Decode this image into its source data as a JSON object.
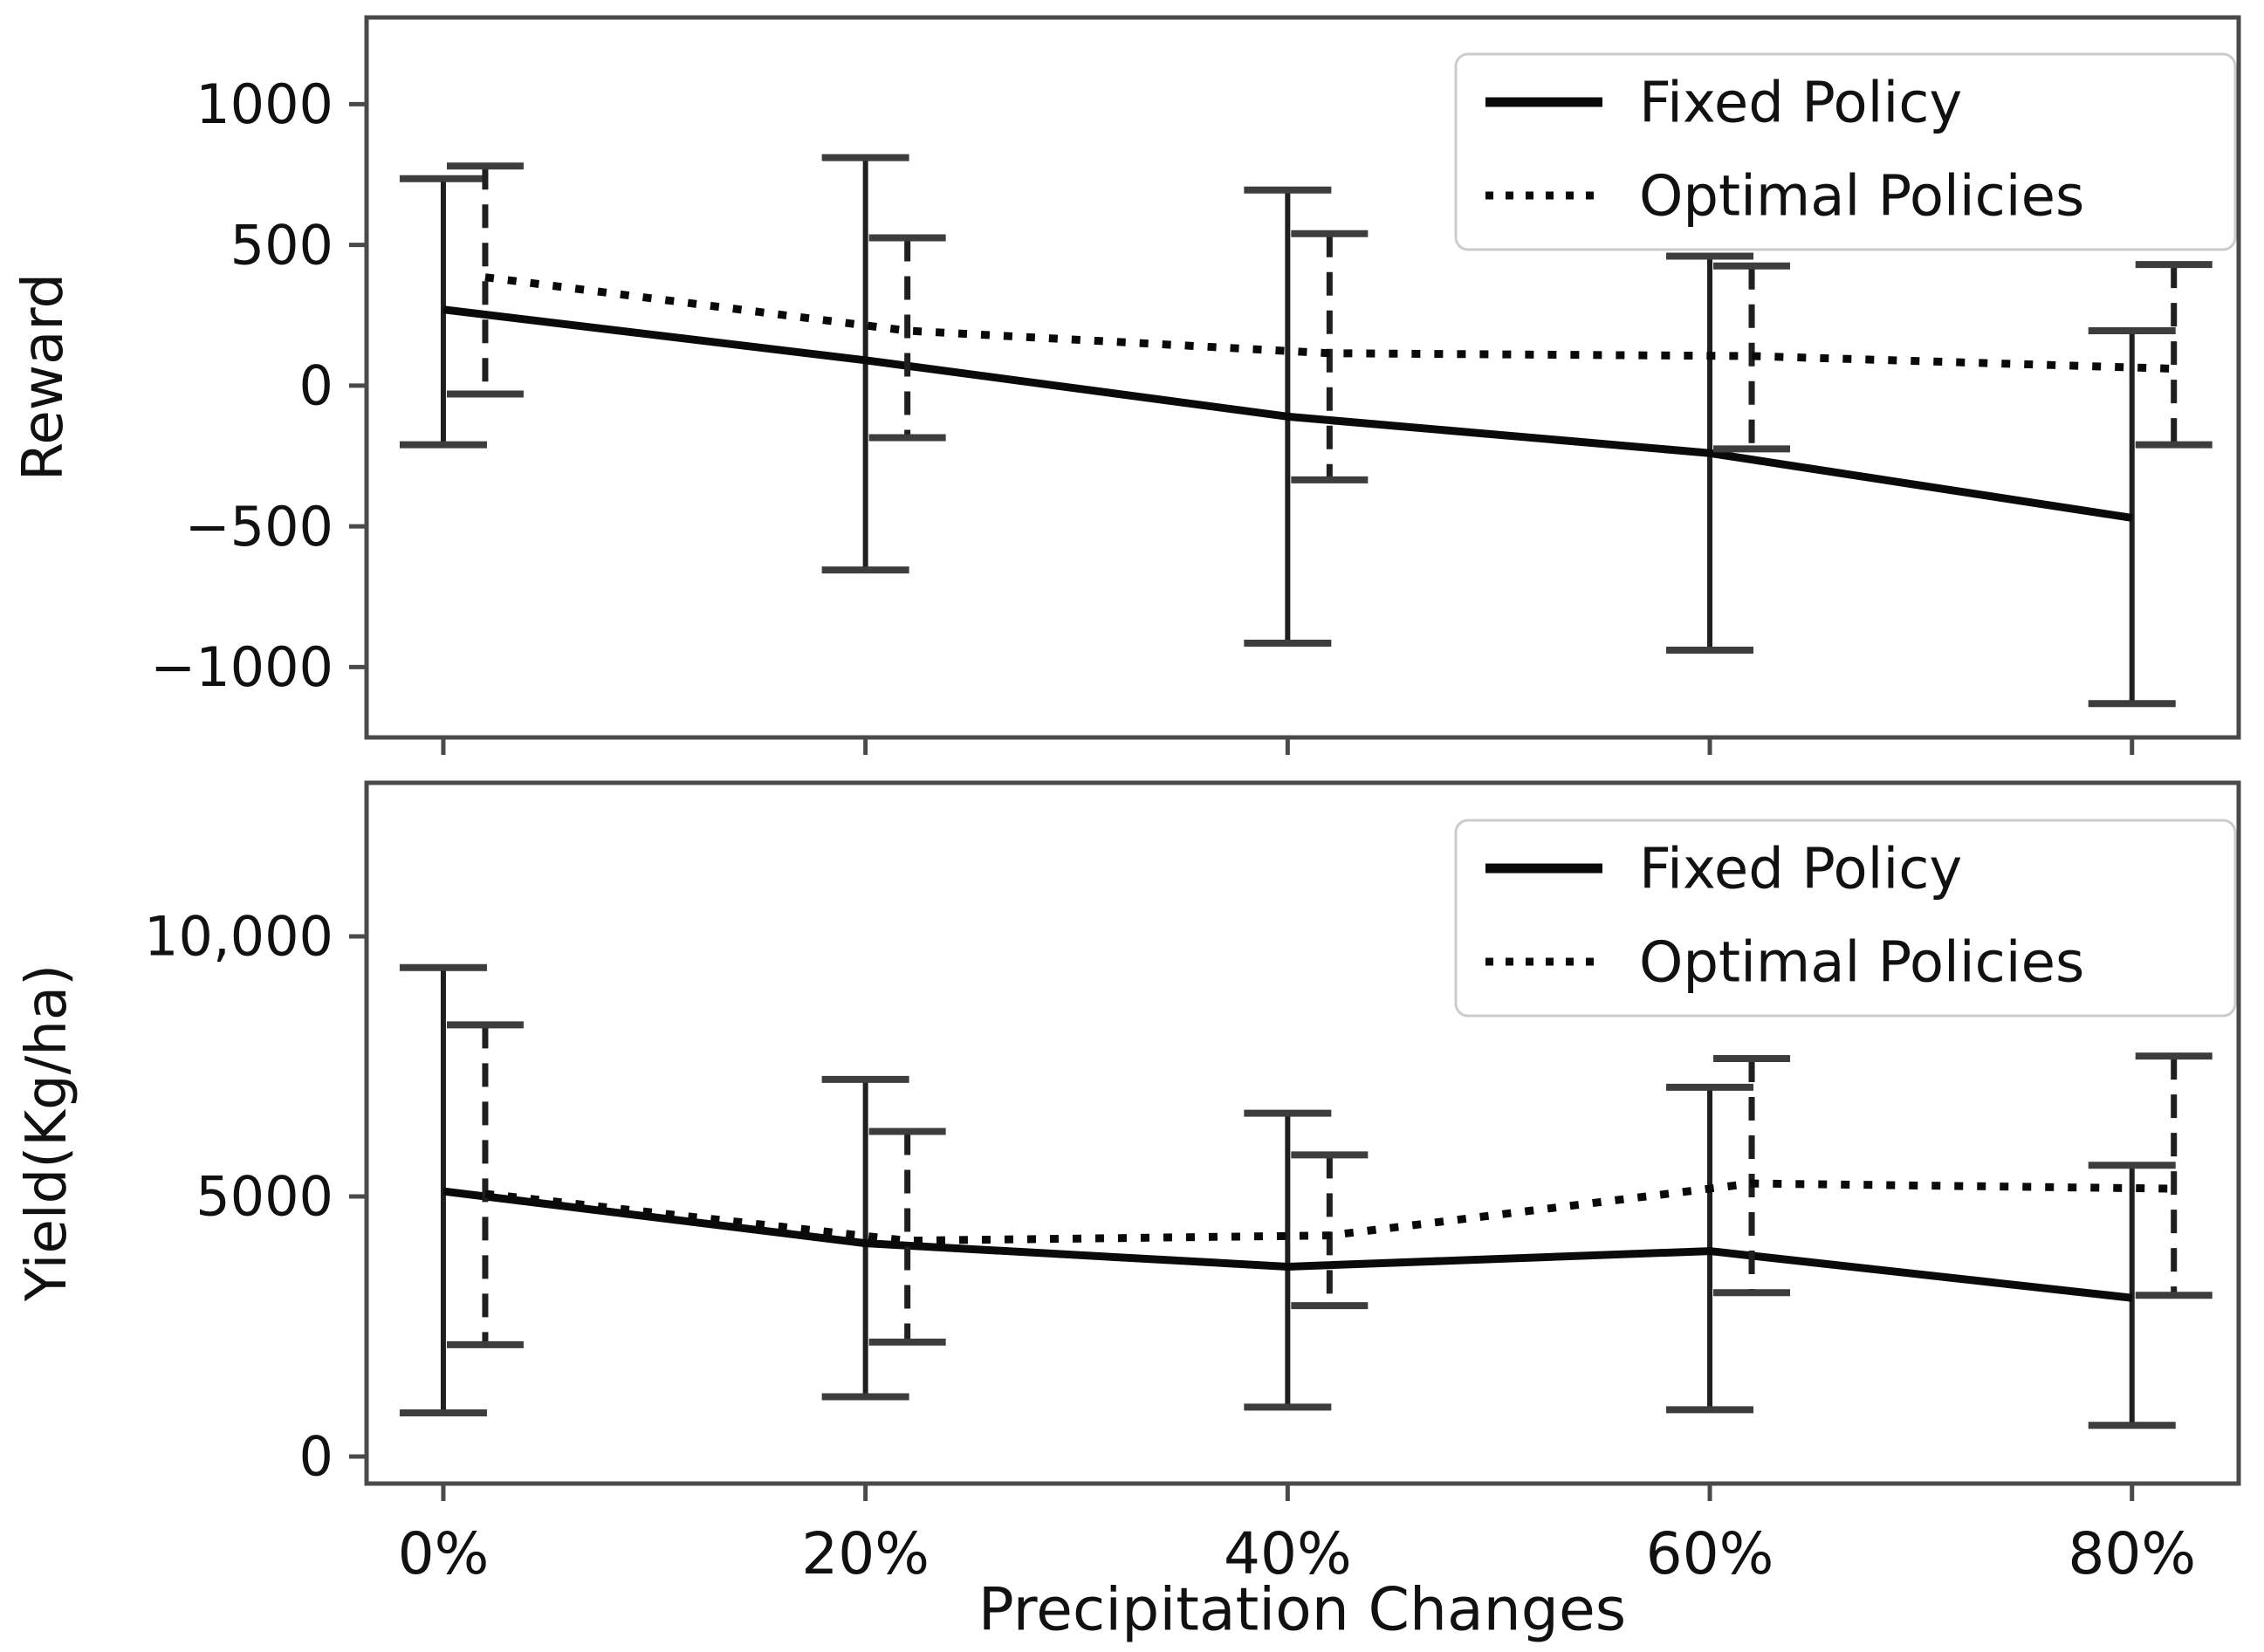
{
  "figure": {
    "background": "#ffffff",
    "spine_color": "#4a4a4a",
    "line_color": "#0a0a0a",
    "legend_border_color": "#cccccc",
    "xlabel": "Precipitation Changes",
    "x_tick_labels": [
      "0%",
      "20%",
      "40%",
      "60%",
      "80%"
    ]
  },
  "chart_data": [
    {
      "type": "line",
      "title": "",
      "ylabel": "Reward",
      "xlabel": "Precipitation Changes",
      "categories": [
        "0%",
        "20%",
        "40%",
        "60%",
        "80%"
      ],
      "ylim": [
        -1250,
        1308
      ],
      "grid": false,
      "legend_position": "upper right",
      "legend": [
        "Fixed Policy",
        "Optimal Policies"
      ],
      "yticks": [
        {
          "value": 1000,
          "label": "1000"
        },
        {
          "value": 500,
          "label": "500"
        },
        {
          "value": 0,
          "label": "0"
        },
        {
          "value": -500,
          "label": "−500"
        },
        {
          "value": -1000,
          "label": "−1000"
        }
      ],
      "series": [
        {
          "name": "Fixed Policy",
          "line_style": "solid",
          "errorbar_style": "solid",
          "values": [
            270,
            90,
            -110,
            -240,
            -470
          ],
          "err_upper": [
            735,
            810,
            695,
            460,
            195
          ],
          "err_lower": [
            -210,
            -655,
            -915,
            -940,
            -1130
          ]
        },
        {
          "name": "Optimal Policies",
          "line_style": "dotted",
          "errorbar_style": "dashed",
          "values": [
            385,
            195,
            115,
            105,
            60
          ],
          "err_upper": [
            780,
            525,
            540,
            425,
            430
          ],
          "err_lower": [
            -30,
            -185,
            -335,
            -225,
            -210
          ]
        }
      ]
    },
    {
      "type": "line",
      "title": "",
      "ylabel": "Yield(Kg/ha)",
      "xlabel": "Precipitation Changes",
      "categories": [
        "0%",
        "20%",
        "40%",
        "60%",
        "80%"
      ],
      "ylim": [
        -520,
        12953
      ],
      "grid": false,
      "legend_position": "upper right",
      "legend": [
        "Fixed Policy",
        "Optimal Policies"
      ],
      "yticks": [
        {
          "value": 10000,
          "label": "10,000"
        },
        {
          "value": 5000,
          "label": "5000"
        },
        {
          "value": 0,
          "label": "0"
        }
      ],
      "series": [
        {
          "name": "Fixed Policy",
          "line_style": "solid",
          "errorbar_style": "solid",
          "values": [
            5100,
            4100,
            3650,
            3950,
            3050
          ],
          "err_upper": [
            9400,
            7250,
            6600,
            7100,
            5600
          ],
          "err_lower": [
            840,
            1150,
            950,
            900,
            600
          ]
        },
        {
          "name": "Optimal Policies",
          "line_style": "dotted",
          "errorbar_style": "dashed",
          "values": [
            5050,
            4150,
            4250,
            5250,
            5150
          ],
          "err_upper": [
            8300,
            6250,
            5800,
            7650,
            7700
          ],
          "err_lower": [
            2150,
            2200,
            2900,
            3150,
            3100
          ]
        }
      ]
    }
  ]
}
